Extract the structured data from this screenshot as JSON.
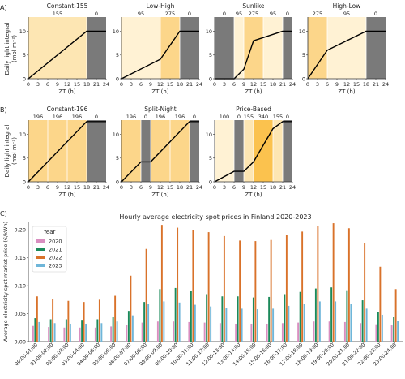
{
  "figure": {
    "panel_labels": [
      "A)",
      "B)",
      "C)"
    ],
    "row_a": {
      "ylabel_lines": [
        "Daily light integral",
        "(mol m⁻²)"
      ],
      "xlabel": "ZT (h)",
      "xticks": [
        "0",
        "3",
        "6",
        "9",
        "12",
        "15",
        "18",
        "21",
        "24"
      ],
      "yticks": [
        "0",
        "5",
        "10"
      ]
    },
    "row_b": {
      "ylabel_lines": [
        "Daily light integral",
        "(mol m⁻²)"
      ],
      "xlabel": "ZT (h)",
      "xticks": [
        "0",
        "3",
        "6",
        "9",
        "12",
        "15",
        "18",
        "21",
        "24"
      ],
      "yticks": [
        "0",
        "5",
        "10"
      ]
    },
    "colors": {
      "seg_155": "#fde6b3",
      "seg_95": "#fff2d4",
      "seg_0": "#7a7a7a",
      "seg_196": "#fcd68a",
      "seg_100": "#fff2d4",
      "seg_340": "#fbc24e",
      "seg_275": "#fcd68a",
      "bar_2020": "#d98ec0",
      "bar_2021": "#1b8a5a",
      "bar_2022": "#d9722a",
      "bar_2023": "#6fb6d9"
    }
  },
  "chart_data": [
    {
      "type": "line",
      "title": "Constant-155",
      "xlim": [
        0,
        24
      ],
      "ylim": [
        0,
        13
      ],
      "segments": [
        {
          "from": 0,
          "to": 18,
          "label": "155",
          "ppfd": 155
        },
        {
          "from": 18,
          "to": 24,
          "label": "0",
          "ppfd": 0
        }
      ],
      "x": [
        0,
        18,
        24
      ],
      "y": [
        0,
        10,
        10
      ]
    },
    {
      "type": "line",
      "title": "Low-High",
      "xlim": [
        0,
        24
      ],
      "ylim": [
        0,
        13
      ],
      "segments": [
        {
          "from": 0,
          "to": 12,
          "label": "95",
          "ppfd": 95
        },
        {
          "from": 12,
          "to": 18,
          "label": "275",
          "ppfd": 275
        },
        {
          "from": 18,
          "to": 24,
          "label": "0",
          "ppfd": 0
        }
      ],
      "x": [
        0,
        12,
        18,
        24
      ],
      "y": [
        0,
        4.1,
        10,
        10
      ]
    },
    {
      "type": "line",
      "title": "Sunlike",
      "xlim": [
        0,
        24
      ],
      "ylim": [
        0,
        13
      ],
      "segments": [
        {
          "from": 0,
          "to": 6,
          "label": "0",
          "ppfd": 0
        },
        {
          "from": 6,
          "to": 9,
          "label": "95",
          "ppfd": 95
        },
        {
          "from": 9,
          "to": 15,
          "label": "275",
          "ppfd": 275
        },
        {
          "from": 15,
          "to": 21,
          "label": "95",
          "ppfd": 95
        },
        {
          "from": 21,
          "to": 24,
          "label": "0",
          "ppfd": 0
        }
      ],
      "x": [
        0,
        6,
        9,
        12,
        21,
        24
      ],
      "y": [
        0,
        0,
        2,
        8,
        10,
        10
      ]
    },
    {
      "type": "line",
      "title": "High-Low",
      "xlim": [
        0,
        24
      ],
      "ylim": [
        0,
        13
      ],
      "segments": [
        {
          "from": 0,
          "to": 6,
          "label": "275",
          "ppfd": 275
        },
        {
          "from": 6,
          "to": 18,
          "label": "95",
          "ppfd": 95
        },
        {
          "from": 18,
          "to": 24,
          "label": "0",
          "ppfd": 0
        }
      ],
      "x": [
        0,
        6,
        18,
        24
      ],
      "y": [
        0,
        6,
        10,
        10
      ]
    },
    {
      "type": "line",
      "title": "Constant-196",
      "xlim": [
        0,
        24
      ],
      "ylim": [
        0,
        13
      ],
      "segments": [
        {
          "from": 0,
          "to": 6,
          "label": "196",
          "ppfd": 196
        },
        {
          "from": 6,
          "to": 12,
          "label": "196",
          "ppfd": 196
        },
        {
          "from": 12,
          "to": 18,
          "label": "196",
          "ppfd": 196
        },
        {
          "from": 18,
          "to": 24,
          "label": "0",
          "ppfd": 0
        }
      ],
      "x": [
        0,
        18,
        24
      ],
      "y": [
        0,
        12.7,
        12.7
      ]
    },
    {
      "type": "line",
      "title": "Split-Night",
      "xlim": [
        0,
        24
      ],
      "ylim": [
        0,
        13
      ],
      "segments": [
        {
          "from": 0,
          "to": 6,
          "label": "196",
          "ppfd": 196
        },
        {
          "from": 6,
          "to": 9,
          "label": "0",
          "ppfd": 0
        },
        {
          "from": 9,
          "to": 15,
          "label": "196",
          "ppfd": 196
        },
        {
          "from": 15,
          "to": 21,
          "label": "196",
          "ppfd": 196
        },
        {
          "from": 21,
          "to": 24,
          "label": "0",
          "ppfd": 0
        }
      ],
      "x": [
        0,
        6,
        9,
        21,
        24
      ],
      "y": [
        0,
        4.2,
        4.2,
        12.7,
        12.7
      ]
    },
    {
      "type": "line",
      "title": "Price-Based",
      "xlim": [
        0,
        24
      ],
      "ylim": [
        0,
        13
      ],
      "segments": [
        {
          "from": 0,
          "to": 6,
          "label": "100",
          "ppfd": 100
        },
        {
          "from": 6,
          "to": 9,
          "label": "0",
          "ppfd": 0
        },
        {
          "from": 9,
          "to": 12,
          "label": "155",
          "ppfd": 155
        },
        {
          "from": 12,
          "to": 18,
          "label": "340",
          "ppfd": 340
        },
        {
          "from": 18,
          "to": 21,
          "label": "155",
          "ppfd": 155
        },
        {
          "from": 21,
          "to": 24,
          "label": "0",
          "ppfd": 0
        }
      ],
      "x": [
        0,
        6,
        9,
        12,
        18,
        21,
        24
      ],
      "y": [
        0,
        2.2,
        2.2,
        4.2,
        11.2,
        12.7,
        12.7
      ]
    },
    {
      "type": "bar",
      "title": "Hourly average electricity spot prices in Finland 2020-2023",
      "ylabel": "Average electricity spot market price (€/kWh)",
      "ylim": [
        0,
        0.215
      ],
      "legend": {
        "title": "Year",
        "position": "top-left"
      },
      "categories": [
        "00:00-01:00",
        "01:00-02:00",
        "02:00-03:00",
        "03:00-04:00",
        "04:00-05:00",
        "05:00-06:00",
        "06:00-07:00",
        "07:00-08:00",
        "08:00-09:00",
        "09:00-10:00",
        "10:00-11:00",
        "11:00-12:00",
        "12:00-13:00",
        "13:00-14:00",
        "14:00-15:00",
        "15:00-16:00",
        "16:00-17:00",
        "17:00-18:00",
        "18:00-19:00",
        "19:00-20:00",
        "20:00-21:00",
        "21:00-22:00",
        "22:00-23:00",
        "23:00-24:00"
      ],
      "series": [
        {
          "name": "2020",
          "values": [
            0.028,
            0.026,
            0.025,
            0.025,
            0.025,
            0.027,
            0.03,
            0.034,
            0.036,
            0.036,
            0.035,
            0.034,
            0.033,
            0.032,
            0.032,
            0.032,
            0.033,
            0.034,
            0.036,
            0.036,
            0.035,
            0.033,
            0.031,
            0.029
          ]
        },
        {
          "name": "2021",
          "values": [
            0.042,
            0.04,
            0.04,
            0.039,
            0.04,
            0.044,
            0.055,
            0.071,
            0.094,
            0.096,
            0.091,
            0.085,
            0.081,
            0.081,
            0.079,
            0.08,
            0.085,
            0.089,
            0.095,
            0.097,
            0.092,
            0.074,
            0.053,
            0.045
          ]
        },
        {
          "name": "2022",
          "values": [
            0.081,
            0.076,
            0.073,
            0.071,
            0.075,
            0.082,
            0.118,
            0.166,
            0.209,
            0.204,
            0.2,
            0.196,
            0.189,
            0.181,
            0.18,
            0.182,
            0.191,
            0.197,
            0.207,
            0.212,
            0.203,
            0.176,
            0.134,
            0.094
          ]
        },
        {
          "name": "2023",
          "values": [
            0.035,
            0.033,
            0.032,
            0.032,
            0.033,
            0.036,
            0.047,
            0.067,
            0.072,
            0.07,
            0.066,
            0.063,
            0.061,
            0.059,
            0.058,
            0.059,
            0.064,
            0.068,
            0.072,
            0.072,
            0.067,
            0.059,
            0.048,
            0.037
          ]
        }
      ],
      "yticks": [
        "0.00",
        "0.05",
        "0.10",
        "0.15",
        "0.20"
      ]
    }
  ]
}
